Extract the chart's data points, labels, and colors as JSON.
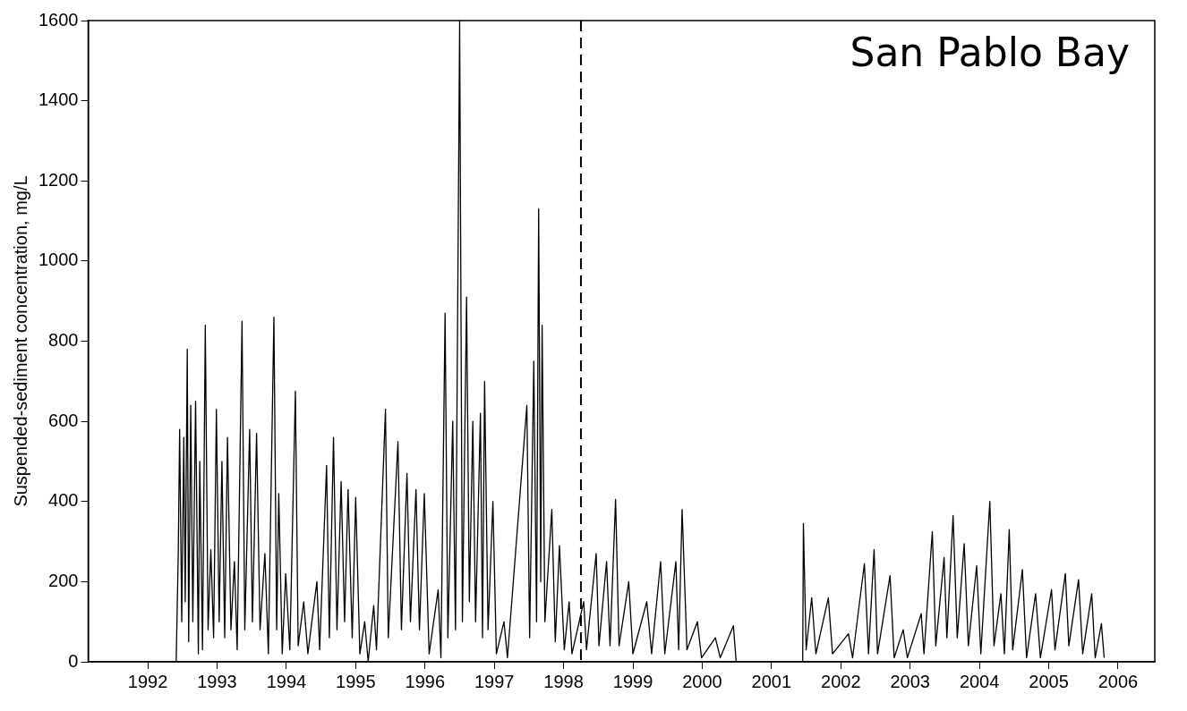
{
  "chart_data": {
    "type": "line",
    "ylabel": "Suspended-sediment concentration, mg/L",
    "annotations": [
      "San Pablo Bay"
    ],
    "xlim": [
      1991.14,
      2006.53
    ],
    "xticks": [
      1992,
      1993,
      1994,
      1995,
      1996,
      1997,
      1998,
      1999,
      2000,
      2001,
      2002,
      2003,
      2004,
      2005,
      2006
    ],
    "ylim": [
      0,
      1600
    ],
    "yticks": [
      0,
      200,
      400,
      600,
      800,
      1000,
      1200,
      1400,
      1600
    ],
    "grid": false,
    "legend": false,
    "marker": "none",
    "line_style": "solid",
    "ref_lines": [
      {
        "axis": "x",
        "value": 1998.25,
        "color": "#000000",
        "line_style": "dashed"
      }
    ],
    "series": [
      {
        "color": "#000000",
        "x": [
          1992.41,
          1992.44,
          1992.46,
          1992.49,
          1992.52,
          1992.54,
          1992.57,
          1992.59,
          1992.62,
          1992.65,
          1992.69,
          1992.73,
          1992.75,
          1992.79,
          1992.83,
          1992.87,
          1992.91,
          1992.95,
          1992.99,
          1993.03,
          1993.07,
          1993.11,
          1993.15,
          1993.2,
          1993.25,
          1993.29,
          1993.36,
          1993.4,
          1993.47,
          1993.51,
          1993.57,
          1993.62,
          1993.69,
          1993.74,
          1993.82,
          1993.86,
          1993.89,
          1993.94,
          1993.99,
          1994.05,
          1994.13,
          1994.17,
          1994.25,
          1994.31,
          1994.44,
          1994.48,
          1994.58,
          1994.62,
          1994.68,
          1994.73,
          1994.79,
          1994.84,
          1994.89,
          1994.95,
          1995.0,
          1995.06,
          1995.13,
          1995.18,
          1995.26,
          1995.3,
          1995.43,
          1995.47,
          1995.61,
          1995.66,
          1995.74,
          1995.79,
          1995.87,
          1995.92,
          1995.99,
          1996.06,
          1996.19,
          1996.23,
          1996.29,
          1996.33,
          1996.4,
          1996.44,
          1996.5,
          1996.54,
          1996.6,
          1996.64,
          1996.69,
          1996.73,
          1996.8,
          1996.83,
          1996.86,
          1996.91,
          1996.98,
          1997.03,
          1997.14,
          1997.19,
          1997.47,
          1997.51,
          1997.57,
          1997.61,
          1997.64,
          1997.67,
          1997.69,
          1997.73,
          1997.83,
          1997.88,
          1997.94,
          1998.01,
          1998.08,
          1998.12,
          1998.29,
          1998.33,
          1998.47,
          1998.51,
          1998.62,
          1998.67,
          1998.75,
          1998.8,
          1998.94,
          1999.0,
          1999.2,
          1999.27,
          1999.4,
          1999.46,
          1999.62,
          1999.66,
          1999.71,
          1999.78,
          1999.93,
          1999.99,
          2000.19,
          2000.26,
          2000.45,
          2000.49,
          2001.0,
          2001.45,
          2001.46,
          2001.5,
          2001.58,
          2001.64,
          2001.82,
          2001.88,
          2002.11,
          2002.17,
          2002.34,
          2002.4,
          2002.48,
          2002.53,
          2002.71,
          2002.77,
          2002.9,
          2002.96,
          2003.16,
          2003.2,
          2003.32,
          2003.37,
          2003.49,
          2003.53,
          2003.62,
          2003.68,
          2003.78,
          2003.84,
          2003.96,
          2004.02,
          2004.15,
          2004.21,
          2004.31,
          2004.36,
          2004.43,
          2004.48,
          2004.62,
          2004.68,
          2004.81,
          2004.88,
          2005.04,
          2005.09,
          2005.24,
          2005.29,
          2005.43,
          2005.49,
          2005.62,
          2005.67,
          2005.76,
          2005.8
        ],
        "values": [
          0,
          270,
          580,
          100,
          560,
          150,
          780,
          50,
          640,
          100,
          650,
          20,
          500,
          30,
          840,
          80,
          280,
          60,
          630,
          100,
          500,
          60,
          560,
          80,
          250,
          30,
          850,
          80,
          580,
          100,
          570,
          80,
          270,
          20,
          860,
          80,
          420,
          20,
          220,
          30,
          675,
          40,
          150,
          20,
          200,
          30,
          490,
          60,
          560,
          80,
          450,
          100,
          430,
          60,
          410,
          20,
          100,
          0,
          140,
          30,
          630,
          60,
          550,
          80,
          470,
          100,
          430,
          80,
          420,
          20,
          180,
          10,
          870,
          60,
          600,
          80,
          1600,
          100,
          910,
          150,
          600,
          100,
          620,
          60,
          700,
          80,
          400,
          20,
          100,
          10,
          640,
          60,
          750,
          100,
          1130,
          200,
          840,
          100,
          380,
          50,
          290,
          30,
          150,
          20,
          150,
          30,
          270,
          40,
          250,
          40,
          405,
          40,
          200,
          20,
          150,
          20,
          250,
          20,
          250,
          30,
          380,
          30,
          100,
          10,
          60,
          10,
          90,
          0,
          null,
          0,
          345,
          30,
          160,
          20,
          160,
          20,
          70,
          10,
          245,
          20,
          280,
          20,
          215,
          10,
          80,
          10,
          120,
          20,
          325,
          40,
          260,
          60,
          365,
          60,
          295,
          40,
          240,
          20,
          400,
          40,
          170,
          20,
          330,
          30,
          230,
          10,
          170,
          10,
          180,
          30,
          220,
          40,
          205,
          20,
          170,
          10,
          95,
          10
        ]
      }
    ]
  }
}
